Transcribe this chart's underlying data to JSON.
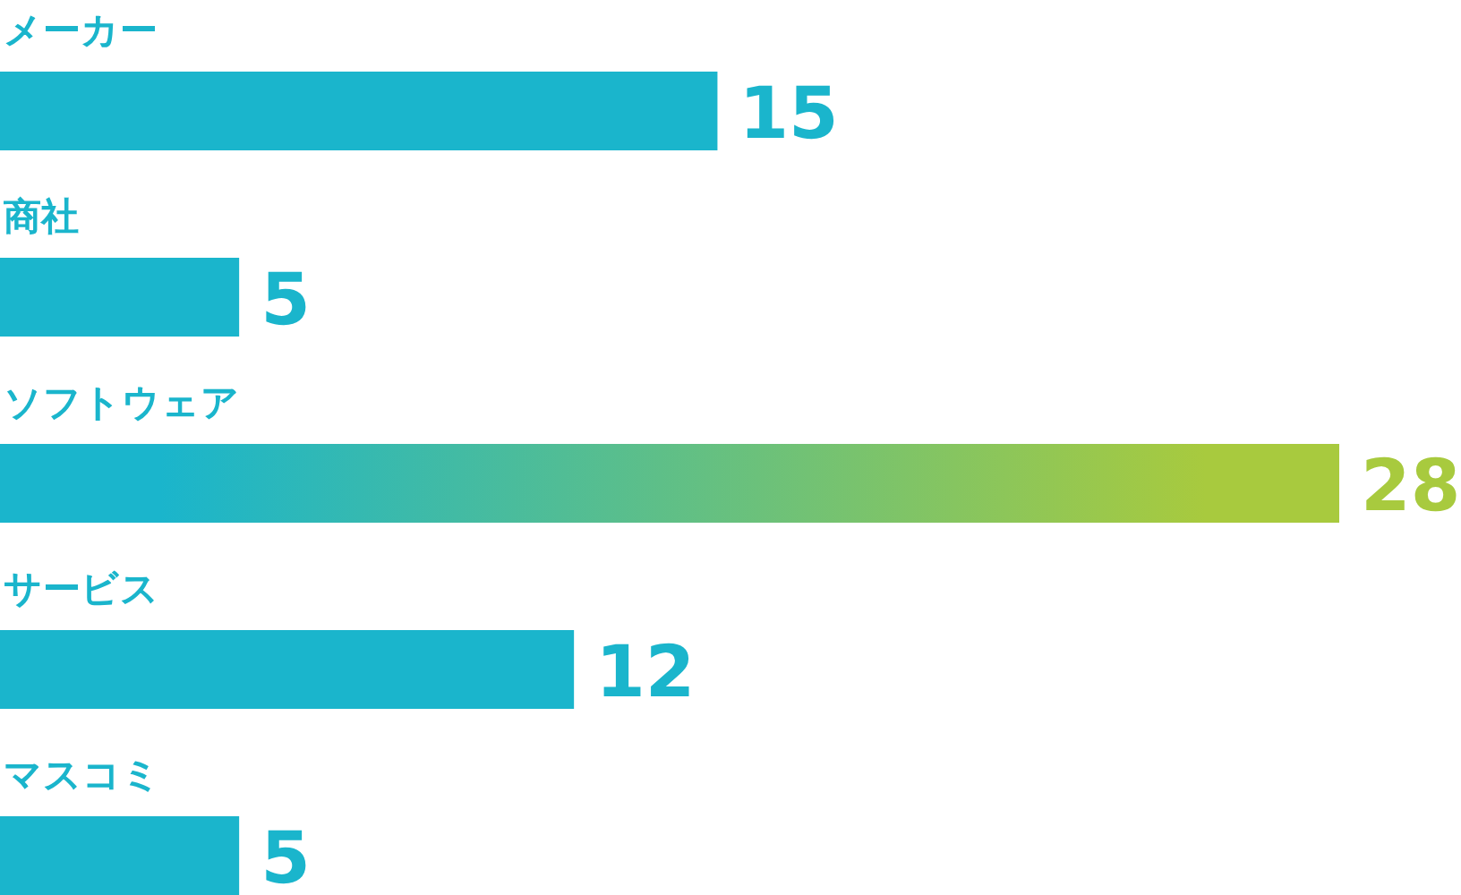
{
  "chart_data": {
    "type": "bar",
    "orientation": "horizontal",
    "categories": [
      "メーカー",
      "商社",
      "ソフトウェア",
      "サービス",
      "マスコミ"
    ],
    "values": [
      15,
      5,
      28,
      12,
      5
    ],
    "color": "#1ab5cc",
    "colors": [
      "#1ab5cc",
      "#1ab5cc",
      "#a8ca3e",
      "#1ab5cc",
      "#1ab5cc"
    ],
    "xlim": [
      0,
      28
    ],
    "data_labels": true
  }
}
